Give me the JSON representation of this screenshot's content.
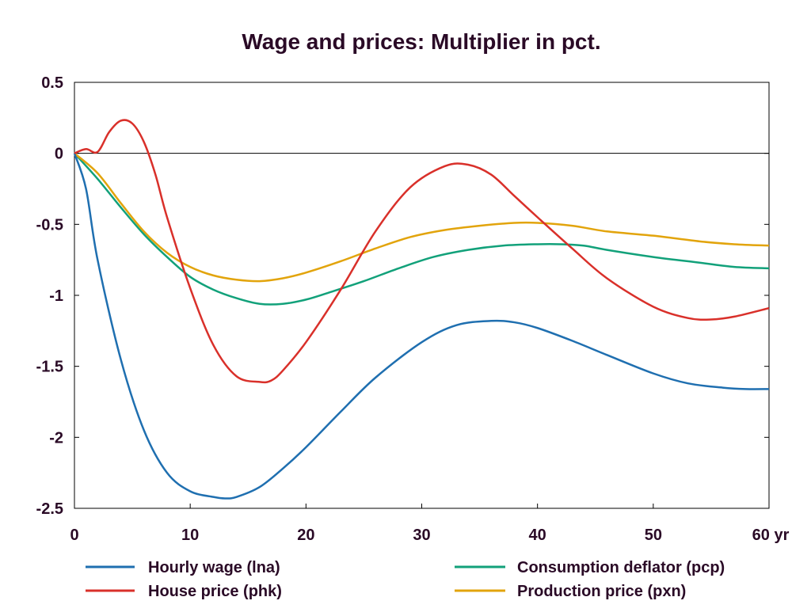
{
  "chart_data": {
    "type": "line",
    "title": "Wage and prices: Multiplier in pct.",
    "xlabel": "",
    "ylabel": "",
    "x_unit": "yr",
    "xlim": [
      0,
      60
    ],
    "ylim": [
      -2.5,
      0.5
    ],
    "x_ticks": [
      0,
      10,
      20,
      30,
      40,
      50,
      60
    ],
    "x_tick_labels": [
      "0",
      "10",
      "20",
      "30",
      "40",
      "50",
      "60 yr"
    ],
    "y_ticks": [
      0.5,
      0,
      -0.5,
      -1,
      -1.5,
      -2,
      -2.5
    ],
    "y_tick_labels": [
      "0.5",
      "0",
      "-0.5",
      "-1",
      "-1.5",
      "-2",
      "-2.5"
    ],
    "grid": false,
    "zero_line": true,
    "legend_position": "bottom",
    "series": [
      {
        "name": "Hourly wage (lna)",
        "color": "#1f6fb0",
        "x": [
          0,
          1,
          2,
          4,
          6,
          8,
          10,
          12,
          13,
          14,
          16,
          18,
          20,
          23,
          26,
          30,
          33,
          36,
          38,
          40,
          43,
          46,
          50,
          53,
          56,
          58,
          60
        ],
        "y": [
          0,
          -0.25,
          -0.75,
          -1.45,
          -1.95,
          -2.25,
          -2.38,
          -2.42,
          -2.43,
          -2.42,
          -2.35,
          -2.22,
          -2.07,
          -1.82,
          -1.58,
          -1.33,
          -1.21,
          -1.18,
          -1.19,
          -1.23,
          -1.32,
          -1.42,
          -1.55,
          -1.62,
          -1.65,
          -1.66,
          -1.66
        ]
      },
      {
        "name": "House price (phk)",
        "color": "#d9302a",
        "x": [
          0,
          1,
          2,
          3,
          4,
          5,
          6,
          7,
          8,
          10,
          12,
          14,
          16,
          17,
          18,
          20,
          23,
          26,
          29,
          32,
          34,
          36,
          38,
          40,
          43,
          46,
          50,
          53,
          55,
          57,
          60
        ],
        "y": [
          0,
          0.03,
          0.01,
          0.15,
          0.23,
          0.21,
          0.08,
          -0.15,
          -0.45,
          -0.95,
          -1.35,
          -1.57,
          -1.61,
          -1.6,
          -1.53,
          -1.33,
          -0.96,
          -0.55,
          -0.24,
          -0.09,
          -0.08,
          -0.15,
          -0.3,
          -0.45,
          -0.67,
          -0.88,
          -1.08,
          -1.16,
          -1.17,
          -1.15,
          -1.09
        ]
      },
      {
        "name": "Consumption deflator (pcp)",
        "color": "#12a17a",
        "x": [
          0,
          2,
          4,
          6,
          8,
          10,
          12,
          14,
          16,
          18,
          20,
          22,
          25,
          28,
          31,
          34,
          37,
          40,
          42,
          44,
          46,
          50,
          54,
          57,
          60
        ],
        "y": [
          0,
          -0.18,
          -0.38,
          -0.57,
          -0.73,
          -0.87,
          -0.96,
          -1.02,
          -1.06,
          -1.06,
          -1.03,
          -0.98,
          -0.9,
          -0.81,
          -0.73,
          -0.68,
          -0.65,
          -0.64,
          -0.64,
          -0.65,
          -0.68,
          -0.73,
          -0.77,
          -0.8,
          -0.81
        ]
      },
      {
        "name": "Production price (pxn)",
        "color": "#e2a40c",
        "x": [
          0,
          2,
          4,
          6,
          8,
          10,
          12,
          14,
          16,
          18,
          20,
          23,
          26,
          29,
          32,
          35,
          38,
          40,
          43,
          46,
          50,
          54,
          57,
          60
        ],
        "y": [
          0,
          -0.14,
          -0.35,
          -0.55,
          -0.7,
          -0.8,
          -0.86,
          -0.89,
          -0.9,
          -0.88,
          -0.84,
          -0.76,
          -0.67,
          -0.59,
          -0.54,
          -0.51,
          -0.49,
          -0.49,
          -0.51,
          -0.55,
          -0.58,
          -0.62,
          -0.64,
          -0.65
        ]
      }
    ]
  }
}
